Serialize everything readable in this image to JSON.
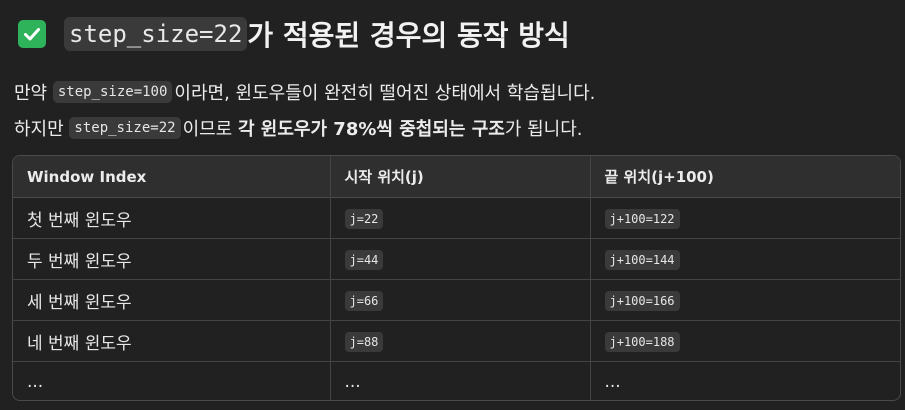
{
  "heading": {
    "code": "step_size=22",
    "text": "가 적용된 경우의 동작 방식"
  },
  "paragraph1": {
    "prefix": "만약 ",
    "code": "step_size=100",
    "suffix": "이라면, 윈도우들이 완전히 떨어진 상태에서 학습됩니다."
  },
  "paragraph2": {
    "prefix": "하지만 ",
    "code": "step_size=22",
    "middle": "이므로 ",
    "bold": "각 윈도우가 78%씩 중첩되는 구조",
    "suffix": "가 됩니다."
  },
  "table": {
    "headers": [
      "Window Index",
      "시작 위치(j)",
      "끝 위치(j+100)"
    ],
    "rows": [
      {
        "index": "첫 번째 윈도우",
        "start": "j=22",
        "end": "j+100=122"
      },
      {
        "index": "두 번째 윈도우",
        "start": "j=44",
        "end": "j+100=144"
      },
      {
        "index": "세 번째 윈도우",
        "start": "j=66",
        "end": "j+100=166"
      },
      {
        "index": "네 번째 윈도우",
        "start": "j=88",
        "end": "j+100=188"
      },
      {
        "index": "...",
        "start": "...",
        "end": "..."
      }
    ]
  },
  "colors": {
    "background": "#212121",
    "check": "#2fb35a",
    "code_bg": "#3a3a3a"
  },
  "icons": {
    "heading_icon": "check-mark-button-icon"
  }
}
